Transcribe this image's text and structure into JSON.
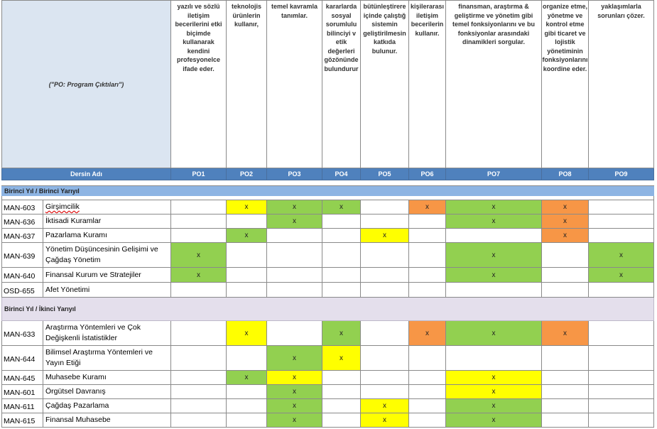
{
  "corner_label": "(\"PO: Program Çıktıları\")",
  "descriptions": [
    "yazılı ve sözlü iletişim becerilerini etki biçimde kullanarak kendini profesyonelce ifade eder.",
    "teknolojis ürünlerin kullanır,",
    "temel kavramla tanımlar.",
    "kararlarda sosyal sorumlulu bilinciyi v etik değerleri gözönünde bulundurur",
    "bütünleştirere içinde çalıştığ sistemin geliştirilmesin katkıda bulunur.",
    "kişilerarası iletişim becerilerin kullanır.",
    "finansman, araştırma & geliştirme ve yönetim gibi temel fonksiyonlarını ve bu fonksiyonlar arasındaki dinamikleri sorgular.",
    "organize etme, yönetme ve kontrol etme gibi ticaret ve lojistik yönetiminin fonksiyonlarını koordine eder.",
    "yaklaşımlarla sorunları çözer."
  ],
  "header": {
    "course_col": "Dersin Adı",
    "po": [
      "PO1",
      "PO2",
      "PO3",
      "PO4",
      "PO5",
      "PO6",
      "PO7",
      "PO8",
      "PO9"
    ]
  },
  "colors": {
    "green": "#92d050",
    "yellow": "#ffff00",
    "orange": "#f79646",
    "header": "#4f81bd"
  },
  "semesters": [
    {
      "label": "Birinci Yıl / Birinci Yarıyıl",
      "courses": [
        {
          "code": "MAN-603",
          "name": "Girşimcilik",
          "marks": [
            "",
            "y",
            "g",
            "g",
            "",
            "o",
            "g",
            "o",
            ""
          ]
        },
        {
          "code": "MAN-636",
          "name": "İktisadi Kuramlar",
          "marks": [
            "",
            "",
            "g",
            "",
            "",
            "",
            "g",
            "o",
            ""
          ]
        },
        {
          "code": "MAN-637",
          "name": "Pazarlama Kuramı",
          "marks": [
            "",
            "g",
            "",
            "",
            "y",
            "",
            "",
            "o",
            ""
          ]
        },
        {
          "code": "MAN-639",
          "name": "Yönetim Düşüncesinin Gelişimi ve Çağdaş Yönetim",
          "marks": [
            "g",
            "",
            "",
            "",
            "",
            "",
            "g",
            "",
            "g"
          ]
        },
        {
          "code": "MAN-640",
          "name": "Finansal Kurum ve Stratejiler",
          "marks": [
            "g",
            "",
            "",
            "",
            "",
            "",
            "g",
            "",
            "g"
          ]
        },
        {
          "code": "OSD-655",
          "name": "Afet Yönetimi",
          "marks": [
            "",
            "",
            "",
            "",
            "",
            "",
            "",
            "",
            ""
          ]
        }
      ]
    },
    {
      "label": "Birinci Yıl / İkinci Yarıyıl",
      "courses": [
        {
          "code": "MAN-633",
          "name": "Araştırma Yöntemleri ve Çok Değişkenli İstatistikler",
          "marks": [
            "",
            "y",
            "",
            "g",
            "",
            "o",
            "g",
            "o",
            ""
          ]
        },
        {
          "code": "MAN-644",
          "name": "Bilimsel Araştırma Yöntemleri ve Yayın Etiği",
          "marks": [
            "",
            "",
            "g",
            "y",
            "",
            "",
            "",
            "",
            ""
          ]
        },
        {
          "code": "MAN-645",
          "name": "Muhasebe Kuramı",
          "marks": [
            "",
            "g",
            "y",
            "",
            "",
            "",
            "y",
            "",
            ""
          ]
        },
        {
          "code": "MAN-601",
          "name": "Örgütsel Davranış",
          "marks": [
            "",
            "",
            "g",
            "",
            "",
            "",
            "y",
            "",
            ""
          ]
        },
        {
          "code": "MAN-611",
          "name": "Çağdaş Pazarlama",
          "marks": [
            "",
            "",
            "g",
            "",
            "y",
            "",
            "g",
            "",
            ""
          ]
        },
        {
          "code": "MAN-615",
          "name": "Finansal Muhasebe",
          "marks": [
            "",
            "",
            "g",
            "",
            "y",
            "",
            "g",
            "",
            ""
          ]
        }
      ]
    }
  ],
  "mark_symbol": "x"
}
